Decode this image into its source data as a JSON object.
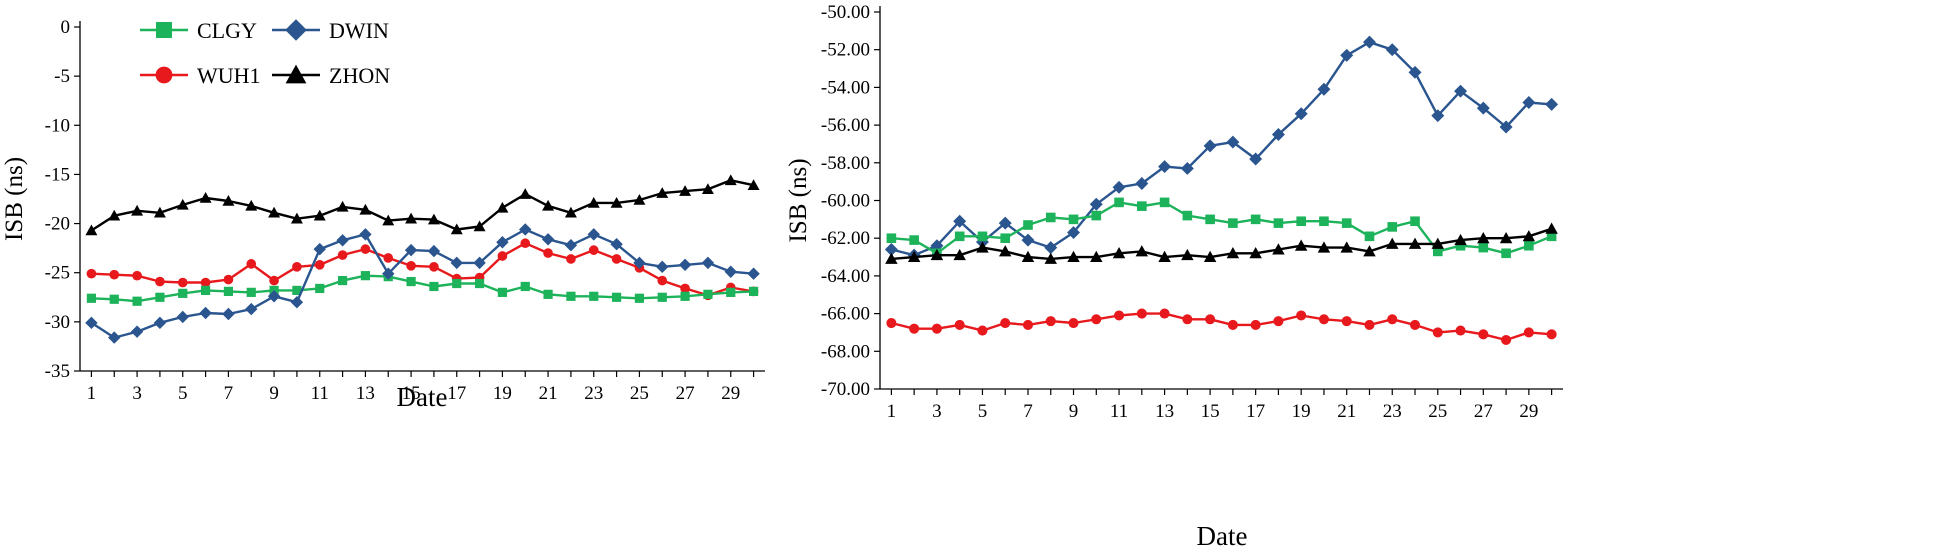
{
  "legend": {
    "entries": [
      {
        "name": "CLGY",
        "color": "#1db35b",
        "marker": "square"
      },
      {
        "name": "DWIN",
        "color": "#2a558f",
        "marker": "diamond"
      },
      {
        "name": "WUH1",
        "color": "#e8191c",
        "marker": "circle"
      },
      {
        "name": "ZHON",
        "color": "#000000",
        "marker": "triangle"
      }
    ]
  },
  "chart_data": [
    {
      "type": "line",
      "title": "",
      "xlabel": "Date",
      "ylabel": "ISB (ns)",
      "ylim": [
        -35,
        0
      ],
      "yticks": [
        0,
        -5,
        -10,
        -15,
        -20,
        -25,
        -30,
        -35
      ],
      "ytick_labels": [
        "0",
        "-5",
        "-10",
        "-15",
        "-20",
        "-25",
        "-30",
        "-35"
      ],
      "xlim": [
        0.5,
        30.5
      ],
      "xticks": [
        1,
        3,
        5,
        7,
        9,
        11,
        13,
        15,
        17,
        19,
        21,
        23,
        25,
        27,
        29
      ],
      "xtick_labels": [
        "1",
        "3",
        "5",
        "7",
        "9",
        "11",
        "13",
        "15",
        "17",
        "19",
        "21",
        "23",
        "25",
        "27",
        "29"
      ],
      "x": [
        1,
        2,
        3,
        4,
        5,
        6,
        7,
        8,
        9,
        10,
        11,
        12,
        13,
        14,
        15,
        16,
        17,
        18,
        19,
        20,
        21,
        22,
        23,
        24,
        25,
        26,
        27,
        28,
        29,
        30
      ],
      "series": [
        {
          "name": "ZHON",
          "values": [
            -20.7,
            -19.2,
            -18.7,
            -18.9,
            -18.1,
            -17.4,
            -17.7,
            -18.2,
            -18.9,
            -19.5,
            -19.2,
            -18.3,
            -18.6,
            -19.7,
            -19.5,
            -19.6,
            -20.6,
            -20.3,
            -18.4,
            -17.0,
            -18.2,
            -18.9,
            -17.9,
            -17.9,
            -17.6,
            -16.9,
            -16.7,
            -16.5,
            -15.6,
            -16.1
          ]
        },
        {
          "name": "WUH1",
          "values": [
            -25.1,
            -25.2,
            -25.3,
            -25.9,
            -26.0,
            -26.0,
            -25.7,
            -24.1,
            -25.8,
            -24.4,
            -24.2,
            -23.2,
            -22.6,
            -23.5,
            -24.3,
            -24.4,
            -25.6,
            -25.5,
            -23.3,
            -22.0,
            -23.0,
            -23.6,
            -22.7,
            -23.6,
            -24.5,
            -25.8,
            -26.6,
            -27.3,
            -26.5,
            -26.9
          ]
        },
        {
          "name": "CLGY",
          "values": [
            -27.6,
            -27.7,
            -27.9,
            -27.5,
            -27.1,
            -26.8,
            -26.9,
            -27.0,
            -26.8,
            -26.8,
            -26.6,
            -25.8,
            -25.3,
            -25.4,
            -25.9,
            -26.4,
            -26.1,
            -26.1,
            -27.0,
            -26.4,
            -27.2,
            -27.4,
            -27.4,
            -27.5,
            -27.6,
            -27.5,
            -27.4,
            -27.2,
            -27.0,
            -26.9
          ]
        },
        {
          "name": "DWIN",
          "values": [
            -30.1,
            -31.6,
            -31.0,
            -30.1,
            -29.5,
            -29.1,
            -29.2,
            -28.7,
            -27.4,
            -28.0,
            -22.6,
            -21.7,
            -21.1,
            -25.1,
            -22.7,
            -22.8,
            -24.0,
            -24.0,
            -21.9,
            -20.6,
            -21.6,
            -22.2,
            -21.1,
            -22.1,
            -24.0,
            -24.4,
            -24.2,
            -24.0,
            -24.9,
            -25.1
          ]
        }
      ]
    },
    {
      "type": "line",
      "title": "",
      "xlabel": "Date",
      "ylabel": "ISB (ns)",
      "ylim": [
        -70,
        -50
      ],
      "yticks": [
        -50,
        -52,
        -54,
        -56,
        -58,
        -60,
        -62,
        -64,
        -66,
        -68,
        -70
      ],
      "ytick_labels": [
        "-50.00",
        "-52.00",
        "-54.00",
        "-56.00",
        "-58.00",
        "-60.00",
        "-62.00",
        "-64.00",
        "-66.00",
        "-68.00",
        "-70.00"
      ],
      "xlim": [
        0.5,
        30.5
      ],
      "xticks": [
        1,
        3,
        5,
        7,
        9,
        11,
        13,
        15,
        17,
        19,
        21,
        23,
        25,
        27,
        29
      ],
      "xtick_labels": [
        "1",
        "3",
        "5",
        "7",
        "9",
        "11",
        "13",
        "15",
        "17",
        "19",
        "21",
        "23",
        "25",
        "27",
        "29"
      ],
      "x": [
        1,
        2,
        3,
        4,
        5,
        6,
        7,
        8,
        9,
        10,
        11,
        12,
        13,
        14,
        15,
        16,
        17,
        18,
        19,
        20,
        21,
        22,
        23,
        24,
        25,
        26,
        27,
        28,
        29,
        30
      ],
      "series": [
        {
          "name": "DWIN",
          "values": [
            -62.6,
            -62.9,
            -62.4,
            -61.1,
            -62.2,
            -61.2,
            -62.1,
            -62.5,
            -61.7,
            -60.2,
            -59.3,
            -59.1,
            -58.2,
            -58.3,
            -57.1,
            -56.9,
            -57.8,
            -56.5,
            -55.4,
            -54.1,
            -52.3,
            -51.6,
            -52.0,
            -53.2,
            -55.5,
            -54.2,
            -55.1,
            -56.1,
            -54.8,
            -54.9
          ]
        },
        {
          "name": "CLGY",
          "values": [
            -62.0,
            -62.1,
            -62.8,
            -61.9,
            -61.9,
            -62.0,
            -61.3,
            -60.9,
            -61.0,
            -60.8,
            -60.1,
            -60.3,
            -60.1,
            -60.8,
            -61.0,
            -61.2,
            -61.0,
            -61.2,
            -61.1,
            -61.1,
            -61.2,
            -61.9,
            -61.4,
            -61.1,
            -62.7,
            -62.4,
            -62.5,
            -62.8,
            -62.4,
            -61.9
          ]
        },
        {
          "name": "ZHON",
          "values": [
            -63.1,
            -63.0,
            -62.9,
            -62.9,
            -62.5,
            -62.7,
            -63.0,
            -63.1,
            -63.0,
            -63.0,
            -62.8,
            -62.7,
            -63.0,
            -62.9,
            -63.0,
            -62.8,
            -62.8,
            -62.6,
            -62.4,
            -62.5,
            -62.5,
            -62.7,
            -62.3,
            -62.3,
            -62.3,
            -62.1,
            -62.0,
            -62.0,
            -61.9,
            -61.5
          ]
        },
        {
          "name": "WUH1",
          "values": [
            -66.5,
            -66.8,
            -66.8,
            -66.6,
            -66.9,
            -66.5,
            -66.6,
            -66.4,
            -66.5,
            -66.3,
            -66.1,
            -66.0,
            -66.0,
            -66.3,
            -66.3,
            -66.6,
            -66.6,
            -66.4,
            -66.1,
            -66.3,
            -66.4,
            -66.6,
            -66.3,
            -66.6,
            -67.0,
            -66.9,
            -67.1,
            -67.4,
            -67.0,
            -67.1
          ]
        }
      ]
    }
  ]
}
